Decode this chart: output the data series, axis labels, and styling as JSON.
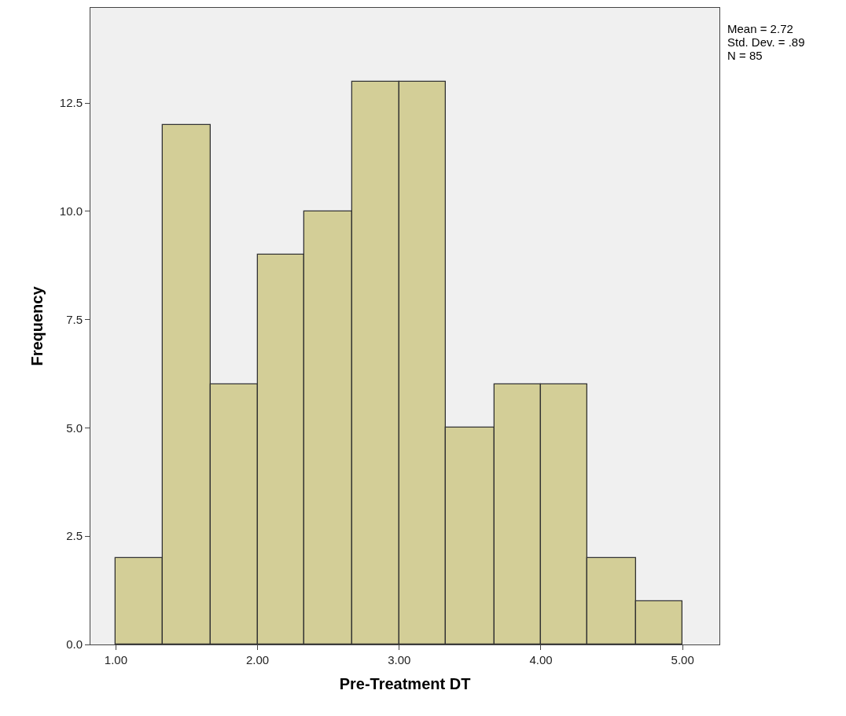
{
  "chart_data": {
    "type": "histogram",
    "xlabel": "Pre-Treatment DT",
    "ylabel": "Frequency",
    "bins": [
      1.0,
      1.33,
      1.67,
      2.0,
      2.33,
      2.67,
      3.0,
      3.33,
      3.67,
      4.0,
      4.33,
      4.67,
      5.0
    ],
    "values": [
      2,
      12,
      6,
      9,
      10,
      13,
      13,
      5,
      6,
      6,
      2,
      1
    ],
    "color": "#d3ce97",
    "xlim": [
      0.82,
      5.26
    ],
    "xticks": [
      {
        "value": 1,
        "label": "1.00"
      },
      {
        "value": 2,
        "label": "2.00"
      },
      {
        "value": 3,
        "label": "3.00"
      },
      {
        "value": 4,
        "label": "4.00"
      },
      {
        "value": 5,
        "label": "5.00"
      }
    ],
    "ylim": [
      0,
      14.7
    ],
    "yticks": [
      {
        "value": 0,
        "label": "0.0"
      },
      {
        "value": 2.5,
        "label": "2.5"
      },
      {
        "value": 5,
        "label": "5.0"
      },
      {
        "value": 7.5,
        "label": "7.5"
      },
      {
        "value": 10,
        "label": "10.0"
      },
      {
        "value": 12.5,
        "label": "12.5"
      }
    ],
    "annotations": [
      "Mean = 2.72",
      "Std. Dev. = .89",
      "N = 85"
    ],
    "grid": false,
    "legend": false
  }
}
